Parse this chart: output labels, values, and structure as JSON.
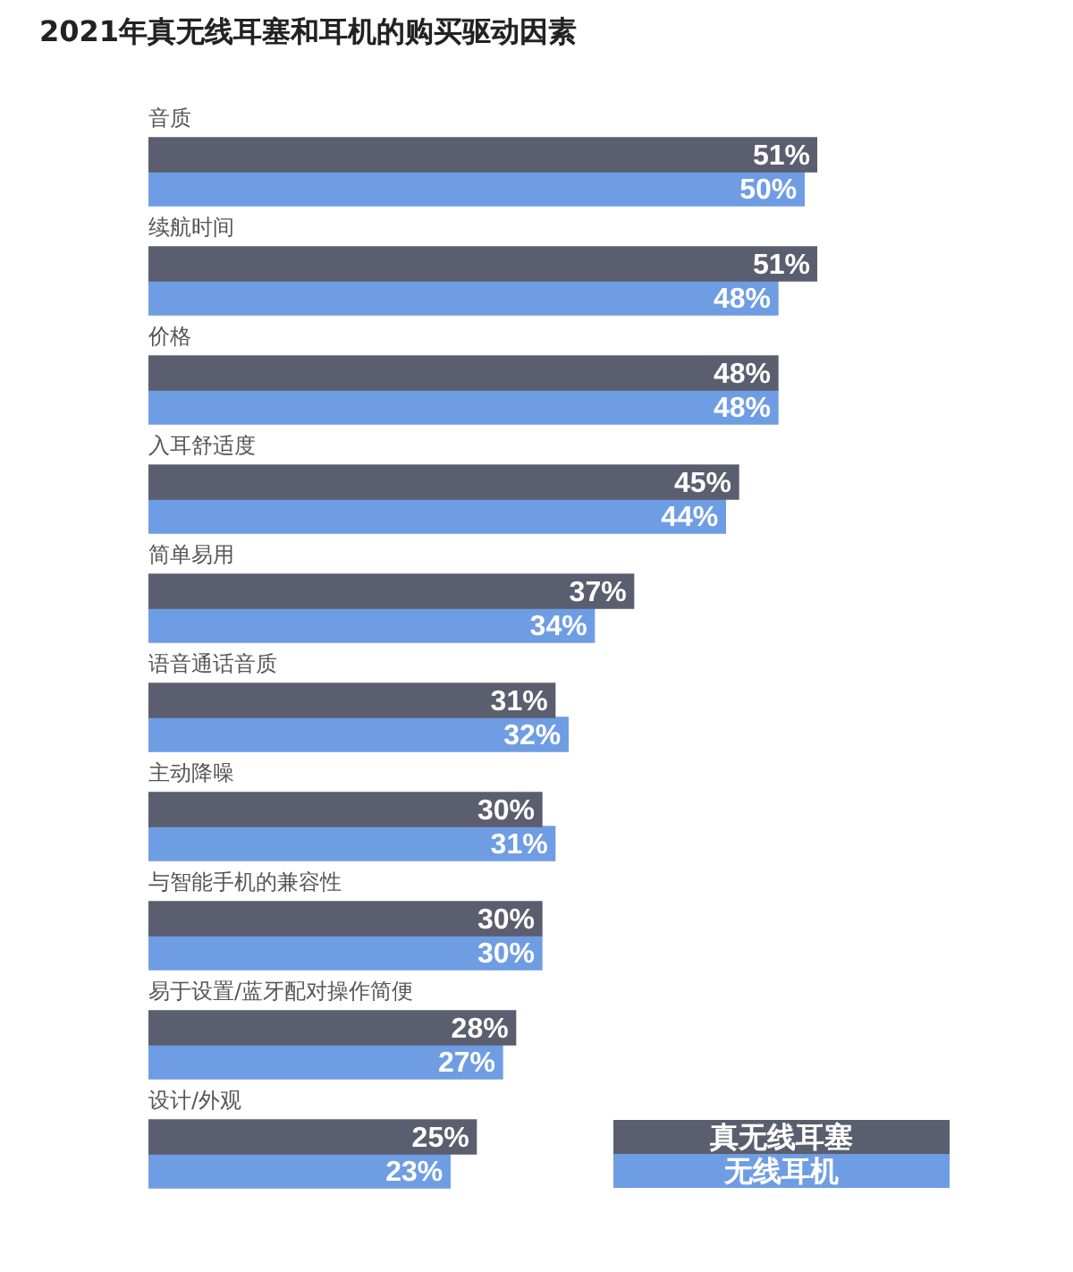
{
  "chart_data": {
    "type": "bar",
    "orientation": "horizontal",
    "title": "2021年真无线耳塞和耳机的购买驱动因素",
    "categories": [
      "音质",
      "续航时间",
      "价格",
      "入耳舒适度",
      "简单易用",
      "语音通话音质",
      "主动降噪",
      "与智能手机的兼容性",
      "易于设置/蓝牙配对操作简便",
      "设计/外观"
    ],
    "series": [
      {
        "name": "真无线耳塞",
        "color": "#5a5e6e",
        "values": [
          51,
          51,
          48,
          45,
          37,
          31,
          30,
          30,
          28,
          25
        ],
        "value_labels": [
          "51%",
          "51%",
          "48%",
          "45%",
          "37%",
          "31%",
          "30%",
          "30%",
          "28%",
          "25%"
        ]
      },
      {
        "name": "无线耳机",
        "color": "#6f9de3",
        "values": [
          50,
          48,
          48,
          44,
          34,
          32,
          31,
          30,
          27,
          23
        ],
        "value_labels": [
          "50%",
          "48%",
          "48%",
          "44%",
          "34%",
          "32%",
          "31%",
          "30%",
          "27%",
          "23%"
        ]
      }
    ],
    "legend": "bottom right"
  }
}
